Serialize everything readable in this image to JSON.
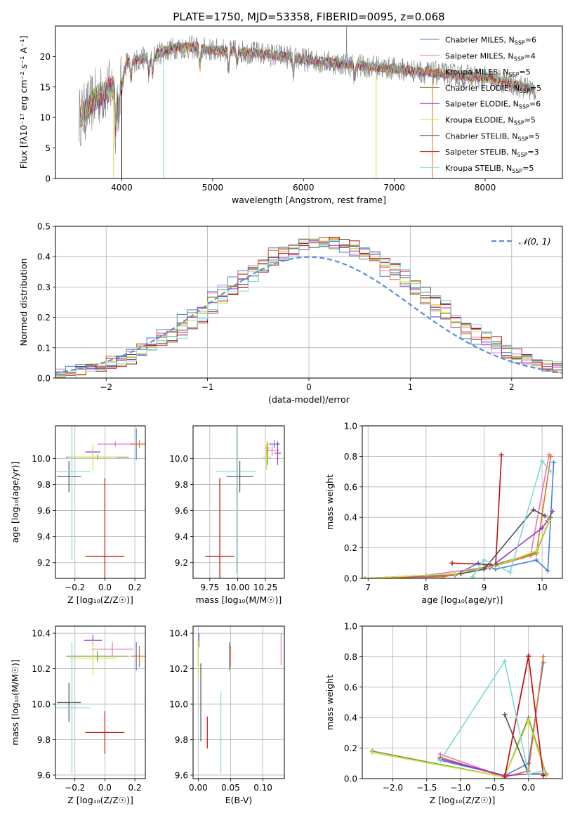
{
  "title": "PLATE=1750, MJD=53358, FIBERID=0095, z=0.068",
  "colors": {
    "Chabrier MILES": "#4a7fd6",
    "Salpeter MILES": "#e377c2",
    "Kroupa MILES": "#e07020",
    "Chabrier ELODIE": "#6a9a3a",
    "Salpeter ELODIE": "#9b30c4",
    "Kroupa ELODIE": "#d4e040",
    "Chabrier STELIB": "#505050",
    "Salpeter STELIB": "#c01010",
    "Kroupa STELIB": "#7fd8d8"
  },
  "models": [
    {
      "name": "Chabrier MILES",
      "nssp": "6"
    },
    {
      "name": "Salpeter MILES",
      "nssp": "4"
    },
    {
      "name": "Kroupa MILES",
      "nssp": "5"
    },
    {
      "name": "Chabrier ELODIE",
      "nssp": "5"
    },
    {
      "name": "Salpeter ELODIE",
      "nssp": "6"
    },
    {
      "name": "Kroupa ELODIE",
      "nssp": "5"
    },
    {
      "name": "Chabrier STELIB",
      "nssp": "5"
    },
    {
      "name": "Salpeter STELIB",
      "nssp": "3"
    },
    {
      "name": "Kroupa STELIB",
      "nssp": "5"
    }
  ],
  "chart_data": [
    {
      "id": "spectrum",
      "type": "line",
      "xlabel": "wavelength [Angstrom, rest frame]",
      "ylabel": "Flux [fλ10⁻¹⁷ erg cm⁻² s⁻¹ A⁻¹]",
      "xlim": [
        3270,
        8850
      ],
      "ylim": [
        0,
        25
      ],
      "xticks": [
        4000,
        5000,
        6000,
        7000,
        8000
      ],
      "yticks": [
        0,
        5,
        10,
        15,
        20
      ],
      "continuum": [
        [
          3530,
          10
        ],
        [
          3600,
          11
        ],
        [
          3700,
          13
        ],
        [
          3800,
          14
        ],
        [
          3900,
          15
        ],
        [
          4000,
          15.5
        ],
        [
          4050,
          19
        ],
        [
          4200,
          19.5
        ],
        [
          4400,
          20.5
        ],
        [
          4600,
          21.5
        ],
        [
          4800,
          21.5
        ],
        [
          5000,
          21
        ],
        [
          5200,
          21
        ],
        [
          5500,
          20.5
        ],
        [
          5800,
          20
        ],
        [
          6000,
          19.5
        ],
        [
          6300,
          19
        ],
        [
          6600,
          18.5
        ],
        [
          7000,
          18
        ],
        [
          7300,
          17.5
        ],
        [
          7600,
          17
        ],
        [
          8000,
          16.5
        ],
        [
          8300,
          15.5
        ],
        [
          8550,
          14.5
        ]
      ]
    },
    {
      "id": "residuals",
      "type": "line",
      "xlabel": "(data-model)/error",
      "ylabel": "Normed distribution",
      "legend": "𝒩(0, 1)",
      "xlim": [
        -2.5,
        2.5
      ],
      "ylim": [
        0,
        0.5
      ],
      "xticks": [
        -2,
        -1,
        0,
        1,
        2
      ],
      "yticks": [
        0,
        0.1,
        0.2,
        0.3,
        0.4,
        0.5
      ]
    },
    {
      "id": "age_vs_Z",
      "type": "scatter",
      "xlabel": "Z [log₁₀(Z/Z☉)]",
      "ylabel": "age  [log₁₀(age/yr)]",
      "xlim": [
        -0.33,
        0.27
      ],
      "ylim": [
        9.08,
        10.25
      ],
      "xticks": [
        -0.2,
        0.0,
        0.2
      ],
      "yticks": [
        9.2,
        9.4,
        9.6,
        9.8,
        10.0
      ],
      "points": [
        {
          "model": "Chabrier MILES",
          "x": 0.21,
          "y": 10.11,
          "xerr": 0.01,
          "yerr": 0.12
        },
        {
          "model": "Salpeter MILES",
          "x": 0.07,
          "y": 10.11,
          "xerr": 0.12,
          "yerr": 0.02
        },
        {
          "model": "Kroupa MILES",
          "x": 0.23,
          "y": 10.11,
          "xerr": 0.06,
          "yerr": 0.03
        },
        {
          "model": "Chabrier ELODIE",
          "x": -0.05,
          "y": 10.01,
          "xerr": 0.21,
          "yerr": 0.02
        },
        {
          "model": "Salpeter ELODIE",
          "x": -0.08,
          "y": 10.05,
          "xerr": 0.05,
          "yerr": 0.02
        },
        {
          "model": "Kroupa ELODIE",
          "x": -0.08,
          "y": 10.01,
          "xerr": 0.16,
          "yerr": 0.1
        },
        {
          "model": "Chabrier STELIB",
          "x": -0.24,
          "y": 9.86,
          "xerr": 0.08,
          "yerr": 0.12
        },
        {
          "model": "Salpeter STELIB",
          "x": 0.0,
          "y": 9.25,
          "xerr": 0.13,
          "yerr": 0.6
        },
        {
          "model": "Kroupa STELIB",
          "x": -0.22,
          "y": 9.9,
          "xerr": 0.12,
          "yerr": 0.68
        }
      ]
    },
    {
      "id": "age_vs_mass",
      "type": "scatter",
      "xlabel": "mass [log₁₀(M/M☉)]",
      "ylabel": "",
      "xlim": [
        9.6,
        10.42
      ],
      "ylim": [
        9.08,
        10.25
      ],
      "xticks": [
        9.75,
        10.0,
        10.25
      ],
      "yticks": [
        9.2,
        9.4,
        9.6,
        9.8,
        10.0
      ],
      "points": [
        {
          "model": "Chabrier MILES",
          "x": 10.33,
          "y": 10.11,
          "xerr": 0.05,
          "yerr": 0.03
        },
        {
          "model": "Salpeter MILES",
          "x": 10.31,
          "y": 10.06,
          "xerr": 0.06,
          "yerr": 0.04
        },
        {
          "model": "Kroupa MILES",
          "x": 10.27,
          "y": 10.08,
          "xerr": 0.02,
          "yerr": 0.05
        },
        {
          "model": "Chabrier ELODIE",
          "x": 10.27,
          "y": 10.01,
          "xerr": 0.03,
          "yerr": 0.06
        },
        {
          "model": "Salpeter ELODIE",
          "x": 10.36,
          "y": 10.04,
          "xerr": 0.03,
          "yerr": 0.09
        },
        {
          "model": "Kroupa ELODIE",
          "x": 10.26,
          "y": 10.01,
          "xerr": 0.04,
          "yerr": 0.1
        },
        {
          "model": "Chabrier STELIB",
          "x": 10.02,
          "y": 9.86,
          "xerr": 0.12,
          "yerr": 0.12
        },
        {
          "model": "Salpeter STELIB",
          "x": 9.84,
          "y": 9.25,
          "xerr": 0.13,
          "yerr": 0.6
        },
        {
          "model": "Kroupa STELIB",
          "x": 9.99,
          "y": 9.9,
          "xerr": 0.18,
          "yerr": 0.78
        }
      ]
    },
    {
      "id": "weight_vs_age",
      "type": "line",
      "xlabel": "age  [log₁₀(age/yr)]",
      "ylabel": "mass weight",
      "xlim": [
        6.9,
        10.35
      ],
      "ylim": [
        0,
        1
      ],
      "xticks": [
        7,
        8,
        9,
        10
      ],
      "yticks": [
        0.0,
        0.2,
        0.4,
        0.6,
        0.8,
        1.0
      ],
      "series": [
        {
          "model": "Chabrier MILES",
          "x": [
            6.95,
            8.5,
            8.9,
            9.2,
            9.9,
            10.1,
            10.2
          ],
          "y": [
            0.0,
            0.02,
            0.1,
            0.06,
            0.12,
            0.05,
            0.76
          ]
        },
        {
          "model": "Salpeter MILES",
          "x": [
            6.95,
            8.0,
            9.0,
            9.8,
            10.12
          ],
          "y": [
            0.0,
            0.02,
            0.07,
            0.15,
            0.81
          ]
        },
        {
          "model": "Kroupa MILES",
          "x": [
            6.95,
            8.3,
            9.0,
            9.9,
            10.15
          ],
          "y": [
            0.0,
            0.01,
            0.06,
            0.16,
            0.8
          ]
        },
        {
          "model": "Chabrier ELODIE",
          "x": [
            6.95,
            8.5,
            9.1,
            9.9,
            10.15
          ],
          "y": [
            0.0,
            0.03,
            0.08,
            0.17,
            0.4
          ]
        },
        {
          "model": "Salpeter ELODIE",
          "x": [
            6.95,
            8.6,
            9.1,
            10.0,
            10.1,
            10.18
          ],
          "y": [
            0.0,
            0.03,
            0.07,
            0.33,
            0.38,
            0.44
          ]
        },
        {
          "model": "Kroupa ELODIE",
          "x": [
            6.95,
            8.5,
            9.2,
            9.9,
            10.12
          ],
          "y": [
            0.0,
            0.03,
            0.08,
            0.18,
            0.38
          ]
        },
        {
          "model": "Chabrier STELIB",
          "x": [
            8.6,
            9.0,
            9.85,
            10.05
          ],
          "y": [
            0.03,
            0.06,
            0.45,
            0.41
          ]
        },
        {
          "model": "Salpeter STELIB",
          "x": [
            8.45,
            9.2,
            9.3
          ],
          "y": [
            0.1,
            0.09,
            0.81
          ]
        },
        {
          "model": "Kroupa STELIB",
          "x": [
            8.8,
            9.0,
            9.45,
            10.0,
            10.15
          ],
          "y": [
            0.01,
            0.12,
            0.04,
            0.77,
            0.7
          ]
        }
      ]
    },
    {
      "id": "mass_vs_Z",
      "type": "scatter",
      "xlabel": "Z [log₁₀(Z/Z☉)]",
      "ylabel": "mass [log₁₀(M/M☉)]",
      "xlim": [
        -0.33,
        0.27
      ],
      "ylim": [
        9.58,
        10.44
      ],
      "xticks": [
        -0.2,
        0.0,
        0.2
      ],
      "yticks": [
        9.6,
        9.8,
        10.0,
        10.2,
        10.4
      ],
      "points": [
        {
          "model": "Chabrier MILES",
          "x": 0.21,
          "y": 10.27,
          "xerr": 0.03,
          "yerr": 0.08
        },
        {
          "model": "Salpeter MILES",
          "x": 0.05,
          "y": 10.31,
          "xerr": 0.14,
          "yerr": 0.04
        },
        {
          "model": "Kroupa MILES",
          "x": 0.23,
          "y": 10.27,
          "xerr": 0.06,
          "yerr": 0.06
        },
        {
          "model": "Chabrier ELODIE",
          "x": -0.05,
          "y": 10.27,
          "xerr": 0.21,
          "yerr": 0.03
        },
        {
          "model": "Salpeter ELODIE",
          "x": -0.08,
          "y": 10.36,
          "xerr": 0.06,
          "yerr": 0.03
        },
        {
          "model": "Kroupa ELODIE",
          "x": -0.08,
          "y": 10.26,
          "xerr": 0.16,
          "yerr": 0.1
        },
        {
          "model": "Chabrier STELIB",
          "x": -0.24,
          "y": 10.01,
          "xerr": 0.08,
          "yerr": 0.11
        },
        {
          "model": "Salpeter STELIB",
          "x": 0.0,
          "y": 9.84,
          "xerr": 0.13,
          "yerr": 0.12
        },
        {
          "model": "Kroupa STELIB",
          "x": -0.22,
          "y": 9.98,
          "xerr": 0.12,
          "yerr": 0.37
        }
      ]
    },
    {
      "id": "mass_vs_ebv",
      "type": "scatter",
      "xlabel": "E(B-V)",
      "ylabel": "",
      "xlim": [
        -0.008,
        0.133
      ],
      "ylim": [
        9.58,
        10.44
      ],
      "xticks": [
        0.0,
        0.05,
        0.1
      ],
      "yticks": [
        9.6,
        9.8,
        10.0,
        10.2,
        10.4
      ],
      "points": [
        {
          "model": "Chabrier MILES",
          "x": 0.048,
          "y": 10.27,
          "yerr": 0.08
        },
        {
          "model": "Salpeter MILES",
          "x": 0.128,
          "y": 10.31,
          "yerr": 0.09
        },
        {
          "model": "Kroupa MILES",
          "x": 0.05,
          "y": 10.27,
          "yerr": 0.06
        },
        {
          "model": "Chabrier ELODIE",
          "x": 0.0,
          "y": 10.27,
          "yerr": 0.05
        },
        {
          "model": "Salpeter ELODIE",
          "x": 0.001,
          "y": 10.36,
          "yerr": 0.04
        },
        {
          "model": "Kroupa ELODIE",
          "x": 0.0,
          "y": 10.26,
          "yerr": 0.1
        },
        {
          "model": "Chabrier STELIB",
          "x": 0.004,
          "y": 10.01,
          "yerr": 0.22
        },
        {
          "model": "Salpeter STELIB",
          "x": 0.014,
          "y": 9.84,
          "yerr": 0.09
        },
        {
          "model": "Kroupa STELIB",
          "x": 0.035,
          "y": 9.84,
          "yerr": 0.23
        }
      ]
    },
    {
      "id": "weight_vs_Z",
      "type": "line",
      "xlabel": "Z [log₁₀(Z/Z☉)]",
      "ylabel": "mass weight",
      "xlim": [
        -2.45,
        0.5
      ],
      "ylim": [
        0,
        1
      ],
      "xticks": [
        -2.0,
        -1.5,
        -1.0,
        -0.5,
        0.0
      ],
      "yticks": [
        0.0,
        0.2,
        0.4,
        0.6,
        0.8,
        1.0
      ],
      "series": [
        {
          "model": "Chabrier MILES",
          "x": [
            -1.3,
            -0.35,
            0.0,
            0.22
          ],
          "y": [
            0.12,
            0.02,
            0.1,
            0.76
          ]
        },
        {
          "model": "Salpeter MILES",
          "x": [
            -1.3,
            -0.35,
            0.0,
            0.22
          ],
          "y": [
            0.16,
            0.01,
            0.81,
            0.02
          ]
        },
        {
          "model": "Kroupa MILES",
          "x": [
            -1.3,
            -0.35,
            0.0,
            0.22
          ],
          "y": [
            0.14,
            0.01,
            0.05,
            0.8
          ]
        },
        {
          "model": "Chabrier ELODIE",
          "x": [
            -2.3,
            -0.35,
            0.0,
            0.26
          ],
          "y": [
            0.18,
            0.01,
            0.4,
            0.03
          ]
        },
        {
          "model": "Salpeter ELODIE",
          "x": [
            -1.3,
            -0.35,
            0.0,
            0.26
          ],
          "y": [
            0.13,
            0.02,
            0.03,
            0.03
          ]
        },
        {
          "model": "Kroupa ELODIE",
          "x": [
            -2.3,
            -0.35,
            0.0,
            0.26
          ],
          "y": [
            0.17,
            0.01,
            0.38,
            0.02
          ]
        },
        {
          "model": "Chabrier STELIB",
          "x": [
            -0.35,
            0.0,
            0.22
          ],
          "y": [
            0.42,
            0.03,
            0.03
          ]
        },
        {
          "model": "Salpeter STELIB",
          "x": [
            -0.35,
            0.0,
            0.22
          ],
          "y": [
            0.01,
            0.8,
            0.02
          ]
        },
        {
          "model": "Kroupa STELIB",
          "x": [
            -1.3,
            -0.35,
            0.0,
            0.22
          ],
          "y": [
            0.12,
            0.77,
            0.03,
            0.05
          ]
        }
      ]
    }
  ]
}
